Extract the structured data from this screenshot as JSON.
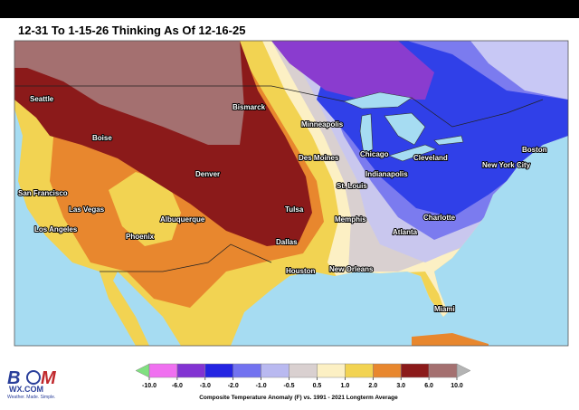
{
  "title": "12-31 To 1-15-26 Thinking As Of 12-16-25",
  "cities": [
    "Seattle",
    "Boise",
    "Bismarck",
    "Minneapolis",
    "Des Moines",
    "Chicago",
    "Cleveland",
    "Boston",
    "New York City",
    "Indianapolis",
    "St. Louis",
    "Denver",
    "San Francisco",
    "Las Vegas",
    "Albuquerque",
    "Tulsa",
    "Memphis",
    "Charlotte",
    "Los Angeles",
    "Phoenix",
    "Atlanta",
    "Dallas",
    "Houston",
    "New Orleans",
    "Miami"
  ],
  "legend": {
    "ticks": [
      "-10.0",
      "-6.0",
      "-3.0",
      "-2.0",
      "-1.0",
      "-0.5",
      "0.5",
      "1.0",
      "2.0",
      "3.0",
      "6.0",
      "10.0"
    ],
    "colors": [
      "#f070f0",
      "#8233d2",
      "#2424e2",
      "#7272f0",
      "#b9b9f0",
      "#d9d0d0",
      "#fcf0c4",
      "#f2d352",
      "#e8872e",
      "#8b1a1a",
      "#a47070"
    ],
    "low_color": "#80e080",
    "high_color": "#b4b4b4",
    "caption": "Composite Temperature Anomaly (F) vs. 1991 - 2021 Longterm Average"
  },
  "logo": {
    "letters": [
      "B",
      "M"
    ],
    "domain": "WX.COM",
    "tagline": "Weather. Made. Simple."
  }
}
